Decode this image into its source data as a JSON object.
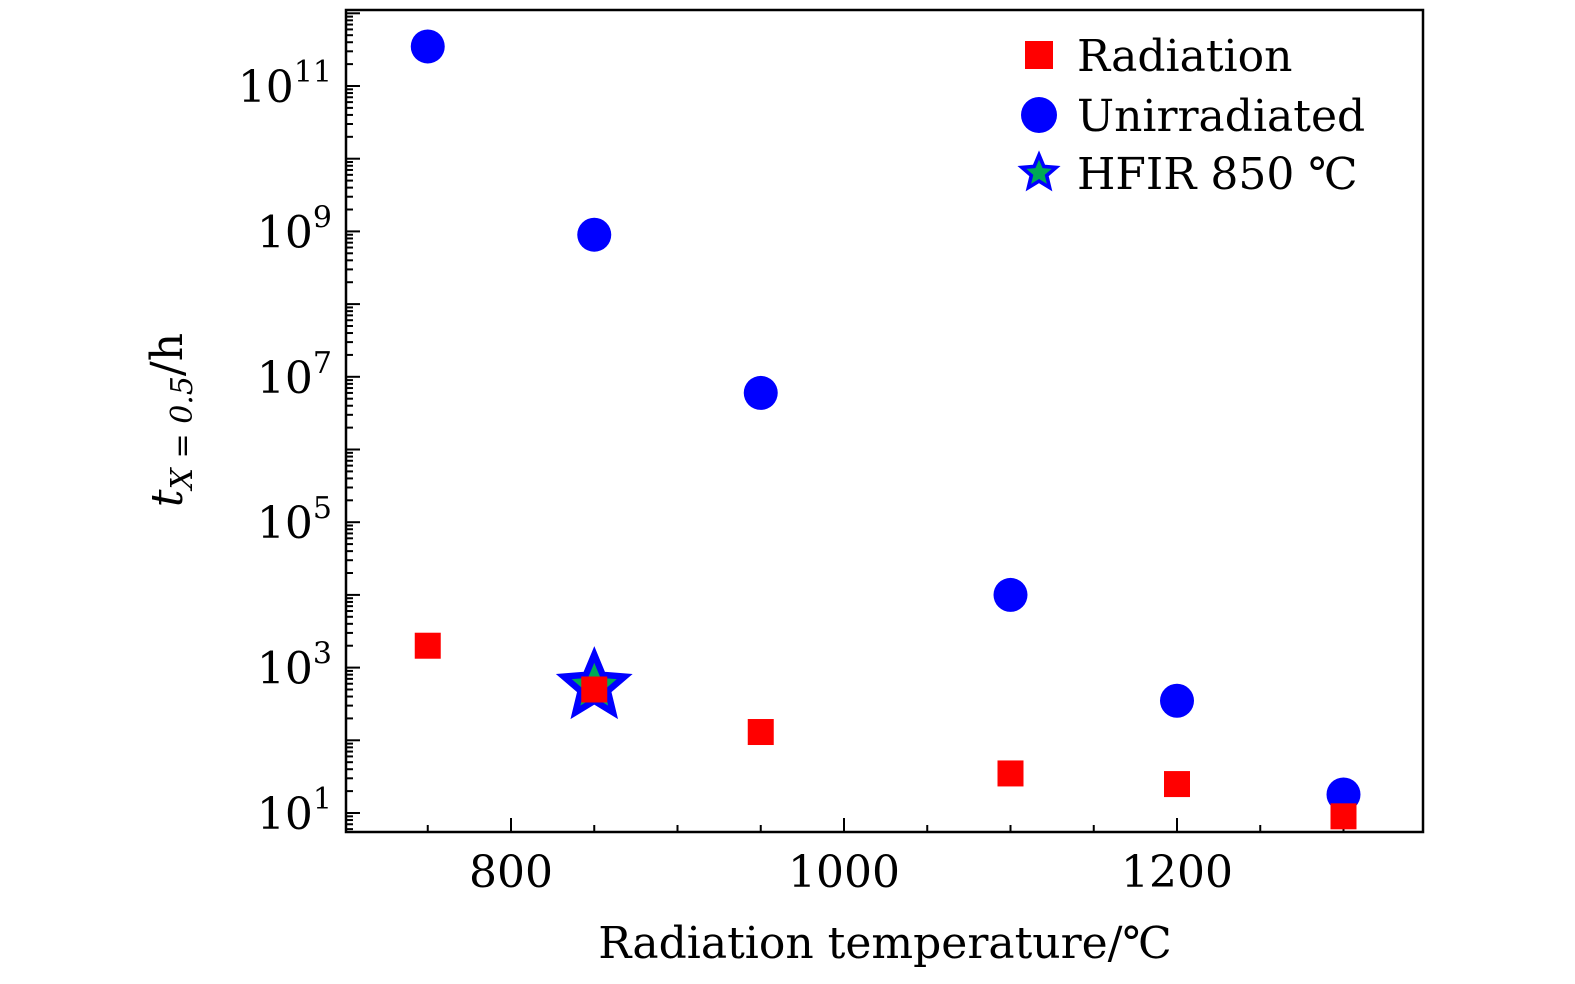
{
  "chart_data": {
    "type": "scatter",
    "xlabel": "Radiation temperature/℃",
    "ylabel": {
      "base": "t",
      "subscript": "X = 0.5",
      "suffix": "/h"
    },
    "xlim": [
      700,
      1350
    ],
    "ylim": [
      3.0,
      1000000000000.0
    ],
    "yscale": "log",
    "xticks": [
      800,
      1000,
      1200
    ],
    "xtick_labels": [
      "800",
      "1000",
      "1200"
    ],
    "yticks": [
      10,
      1000,
      100000,
      10000000,
      1000000000,
      100000000000
    ],
    "ytick_labels": [
      {
        "base": "10",
        "exp": "1"
      },
      {
        "base": "10",
        "exp": "3"
      },
      {
        "base": "10",
        "exp": "5"
      },
      {
        "base": "10",
        "exp": "7"
      },
      {
        "base": "10",
        "exp": "9"
      },
      {
        "base": "10",
        "exp": "11"
      }
    ],
    "grid": false,
    "legend_position": "top-right",
    "series": [
      {
        "name": "Radiation",
        "marker": "square",
        "color": "#ff0000",
        "x": [
          750,
          850,
          950,
          1100,
          1200,
          1300
        ],
        "y": [
          2000,
          500,
          130,
          35,
          25,
          9
        ]
      },
      {
        "name": "Unirradiated",
        "marker": "circle",
        "color": "#0000ff",
        "x": [
          750,
          850,
          950,
          1100,
          1200,
          1300
        ],
        "y": [
          350000000000,
          900000000,
          6000000,
          10000,
          350,
          18
        ]
      },
      {
        "name": "HFIR 850 ℃",
        "marker": "star",
        "color": "#0000ff",
        "center_color": "#00aa55",
        "x": [
          850
        ],
        "y": [
          550
        ]
      }
    ]
  }
}
